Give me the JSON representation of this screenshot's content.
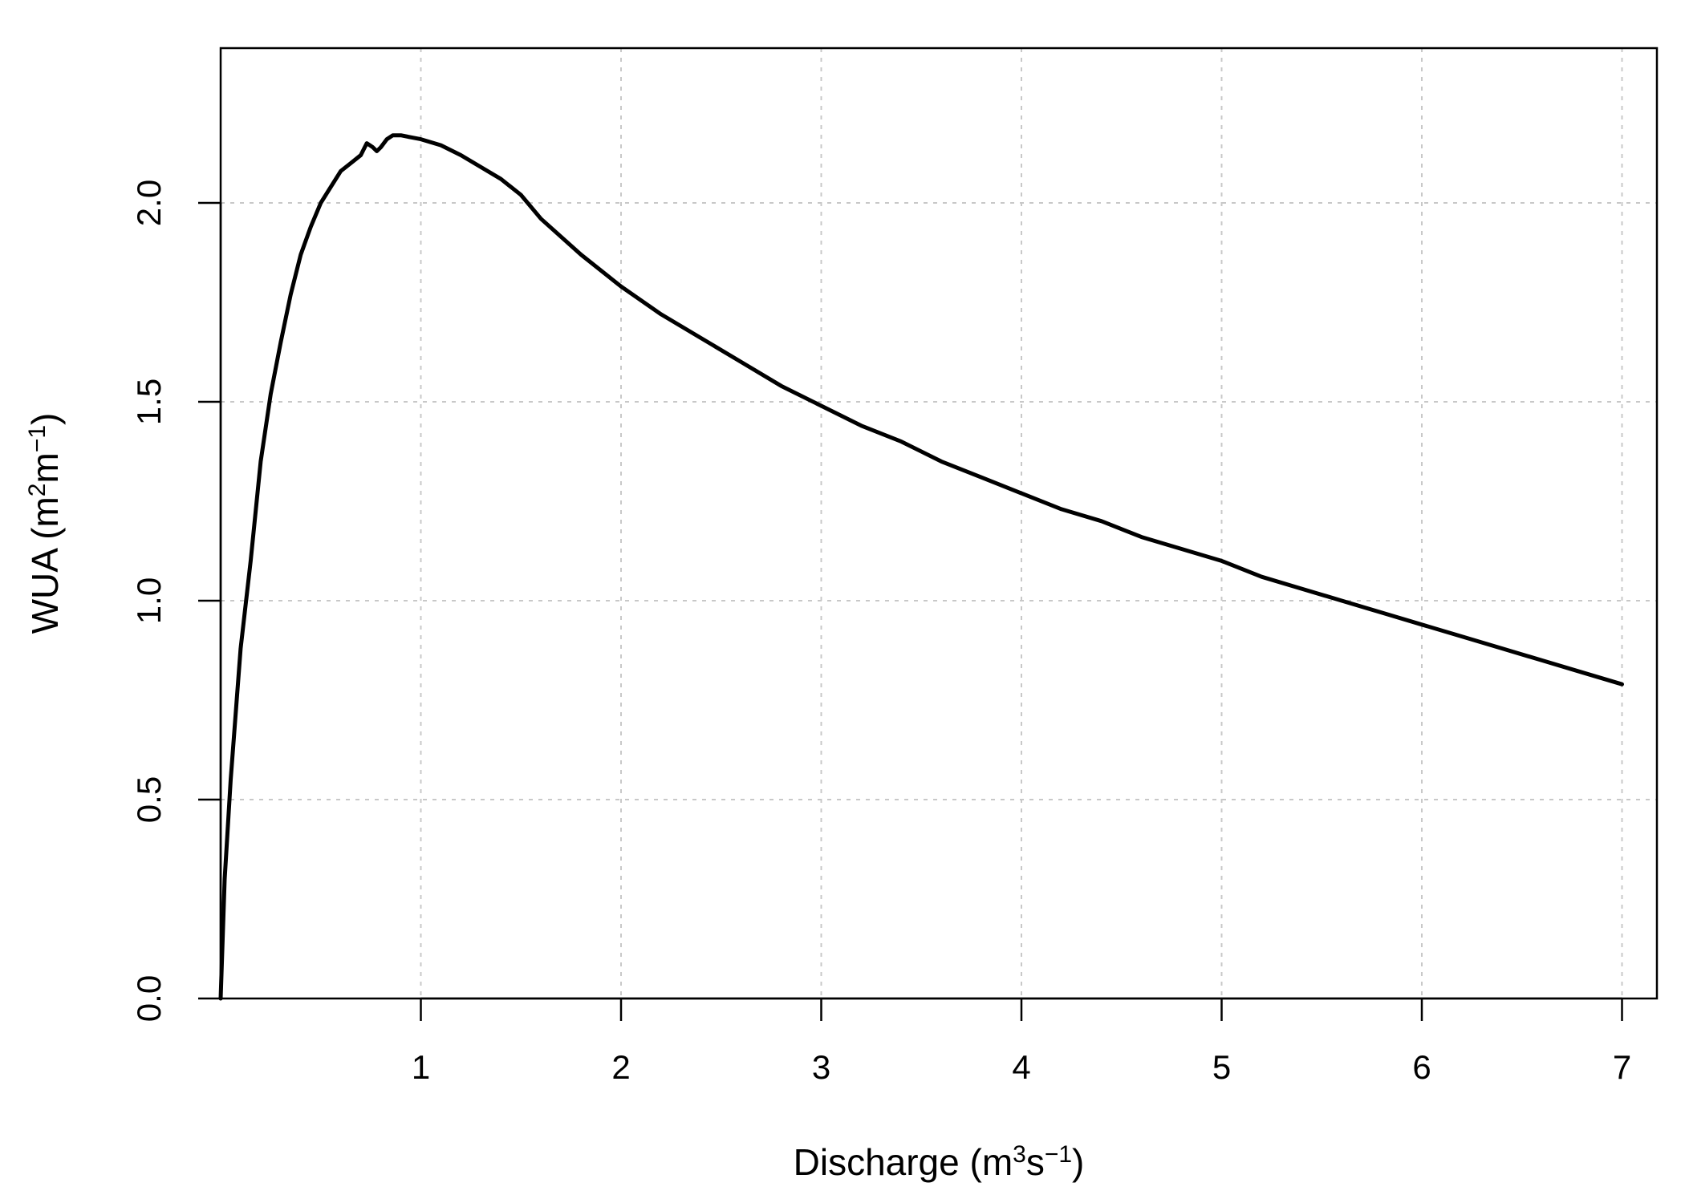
{
  "chart_data": {
    "type": "line",
    "xlabel": {
      "prefix": "Discharge (m",
      "sup1": "3",
      "mid": "s",
      "sup2": "−1",
      "suffix": ")"
    },
    "ylabel": {
      "prefix": "WUA (m",
      "sup1": "2",
      "mid": "m",
      "sup2": "−1",
      "suffix": ")"
    },
    "xlim": [
      0,
      7
    ],
    "ylim": [
      0,
      2.4
    ],
    "x_ticks": [
      1,
      2,
      3,
      4,
      5,
      6,
      7
    ],
    "x_tick_labels": [
      "1",
      "2",
      "3",
      "4",
      "5",
      "6",
      "7"
    ],
    "y_ticks": [
      0,
      0.5,
      1,
      1.5,
      2
    ],
    "y_tick_labels": [
      "0.0",
      "0.5",
      "1.0",
      "1.5",
      "2.0"
    ],
    "grid": true,
    "series": [
      {
        "x": [
          0,
          0.02,
          0.05,
          0.08,
          0.1,
          0.15,
          0.2,
          0.25,
          0.3,
          0.35,
          0.4,
          0.45,
          0.5,
          0.55,
          0.6,
          0.65,
          0.7,
          0.73,
          0.76,
          0.78,
          0.8,
          0.83,
          0.86,
          0.9,
          0.95,
          1.0,
          1.1,
          1.2,
          1.3,
          1.4,
          1.5,
          1.6,
          1.8,
          2.0,
          2.2,
          2.4,
          2.6,
          2.8,
          3.0,
          3.2,
          3.4,
          3.6,
          3.8,
          4.0,
          4.2,
          4.4,
          4.6,
          4.8,
          5.0,
          5.2,
          5.4,
          5.6,
          5.8,
          6.0,
          6.2,
          6.4,
          6.6,
          6.8,
          7.0
        ],
        "y": [
          0,
          0.3,
          0.55,
          0.75,
          0.88,
          1.1,
          1.35,
          1.52,
          1.65,
          1.77,
          1.87,
          1.94,
          2.0,
          2.04,
          2.08,
          2.1,
          2.12,
          2.15,
          2.14,
          2.13,
          2.14,
          2.16,
          2.17,
          2.17,
          2.165,
          2.16,
          2.145,
          2.12,
          2.09,
          2.06,
          2.02,
          1.96,
          1.87,
          1.79,
          1.72,
          1.66,
          1.6,
          1.54,
          1.49,
          1.44,
          1.4,
          1.35,
          1.31,
          1.27,
          1.23,
          1.2,
          1.16,
          1.13,
          1.1,
          1.06,
          1.03,
          1.0,
          0.97,
          0.94,
          0.91,
          0.88,
          0.85,
          0.82,
          0.79
        ]
      }
    ]
  }
}
